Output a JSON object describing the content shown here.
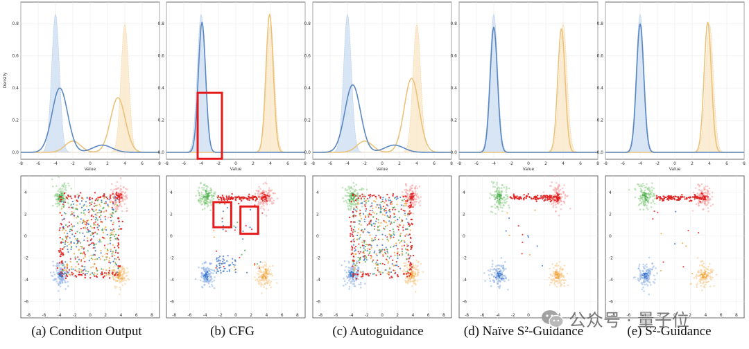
{
  "panels": [
    {
      "label": "(a) Condition Output",
      "density": {
        "blue_peak": 0.4,
        "blue_mode": -3.5,
        "orange_peak": 0.34,
        "orange_mode": 3.2
      },
      "scatter": "spread",
      "highlight_boxes": 0
    },
    {
      "label": "(b) CFG",
      "density": {
        "blue_peak": 0.81,
        "blue_mode": -3.9,
        "orange_peak": 0.86,
        "orange_mode": 3.9
      },
      "scatter": "cfg",
      "highlight_boxes": 2
    },
    {
      "label": "(c) Autoguidance",
      "density": {
        "blue_peak": 0.42,
        "blue_mode": -3.4,
        "orange_peak": 0.46,
        "orange_mode": 3.4
      },
      "scatter": "spread",
      "highlight_boxes": 0
    },
    {
      "label": "(d) Naïve S²-Guidance",
      "density": {
        "blue_peak": 0.78,
        "blue_mode": -4.0,
        "orange_peak": 0.77,
        "orange_mode": 3.8
      },
      "scatter": "s2",
      "highlight_boxes": 0
    },
    {
      "label": "(e) S²-Guidance",
      "density": {
        "blue_peak": 0.8,
        "blue_mode": -4.0,
        "orange_peak": 0.81,
        "orange_mode": 3.8
      },
      "scatter": "s2",
      "highlight_boxes": 0
    }
  ],
  "chart_data": [
    {
      "type": "area",
      "description": "Top row density curves (guided output vs. ground-truth filled)",
      "ylabel": "Density",
      "xlabel": "Value",
      "xlim": [
        -8,
        8
      ],
      "ylim": [
        0,
        0.9
      ],
      "xticks": [
        -8,
        -6,
        -4,
        -2,
        0,
        2,
        4,
        6,
        8
      ],
      "yticks": [
        0.0,
        0.2,
        0.4,
        0.6,
        0.8
      ],
      "ytick_labels": [
        "0.0",
        "0.2",
        "0.4",
        "0.6",
        "0.8"
      ],
      "ground_truth": {
        "blue_mode": -4,
        "blue_peak": 0.86,
        "orange_mode": 4,
        "orange_peak": 0.8
      }
    },
    {
      "type": "scatter",
      "description": "Bottom row 2D samples around four clusters",
      "xlim": [
        -9,
        9
      ],
      "ylim": [
        -7,
        5
      ],
      "xticks": [
        -8,
        -6,
        -4,
        -2,
        0,
        2,
        4,
        6,
        8
      ],
      "yticks": [
        4,
        2,
        0,
        -2,
        -4,
        -6
      ],
      "clusters": [
        {
          "color": "green",
          "center": [
            -3.8,
            3.6
          ]
        },
        {
          "color": "red",
          "center": [
            3.8,
            3.6
          ]
        },
        {
          "color": "blue",
          "center": [
            -3.8,
            -3.6
          ]
        },
        {
          "color": "orange",
          "center": [
            3.8,
            -3.6
          ]
        }
      ]
    }
  ],
  "colors": {
    "blue_line": "#5b87c1",
    "blue_fill": "#c9dcf1",
    "orange_line": "#ebc27a",
    "orange_fill": "#fae6c6",
    "green": "#8fd08a",
    "red": "#e01e1e",
    "box": "#e51b1b",
    "frame": "#444444"
  },
  "watermark": {
    "icon": "wechat-icon",
    "text": "公众号 · 量子位"
  }
}
